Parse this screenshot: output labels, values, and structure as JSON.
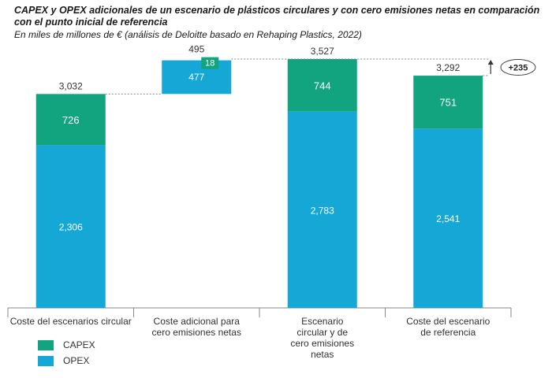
{
  "title": "CAPEX y OPEX adicionales de un escenario de plásticos circulares y con cero emisiones netas en comparación con el punto inicial de referencia",
  "subtitle": "En miles de millones de € (análisis de Deloitte basado en Rehaping Plastics, 2022)",
  "colors": {
    "capex": "#12a37f",
    "opex": "#15a8d6",
    "axis": "#8a8a8a",
    "dotted": "#888888"
  },
  "legend": [
    {
      "label": "CAPEX",
      "color": "#12a37f"
    },
    {
      "label": "OPEX",
      "color": "#15a8d6"
    }
  ],
  "chart_data": {
    "type": "bar",
    "subtype": "waterfall-stacked",
    "ylim": [
      0,
      3527
    ],
    "categories": [
      [
        "Coste del escenarios circular"
      ],
      [
        "Coste adicional para",
        "cero emisiones netas"
      ],
      [
        "Escenario",
        "circular y de",
        "cero emisiones",
        "netas"
      ],
      [
        "Coste del escenario",
        "de referencia"
      ]
    ],
    "bars": [
      {
        "kind": "stack",
        "base": 0,
        "opex": 2306,
        "capex": 726,
        "total": 3032,
        "opex_label": "2,306",
        "capex_label": "726",
        "total_label": "3,032"
      },
      {
        "kind": "floating",
        "base": 3032,
        "opex": 477,
        "capex": 18,
        "total": 495,
        "opex_label": "477",
        "capex_label": "18",
        "total_label": "495"
      },
      {
        "kind": "stack",
        "base": 0,
        "opex": 2783,
        "capex": 744,
        "total": 3527,
        "opex_label": "2,783",
        "capex_label": "744",
        "total_label": "3,527"
      },
      {
        "kind": "stack",
        "base": 0,
        "opex": 2541,
        "capex": 751,
        "total": 3292,
        "opex_label": "2,541",
        "capex_label": "751",
        "total_label": "3,292"
      }
    ],
    "difference": {
      "value": 235,
      "label": "+235",
      "from": 3292,
      "to": 3527
    },
    "series": [
      {
        "name": "CAPEX"
      },
      {
        "name": "OPEX"
      }
    ]
  }
}
